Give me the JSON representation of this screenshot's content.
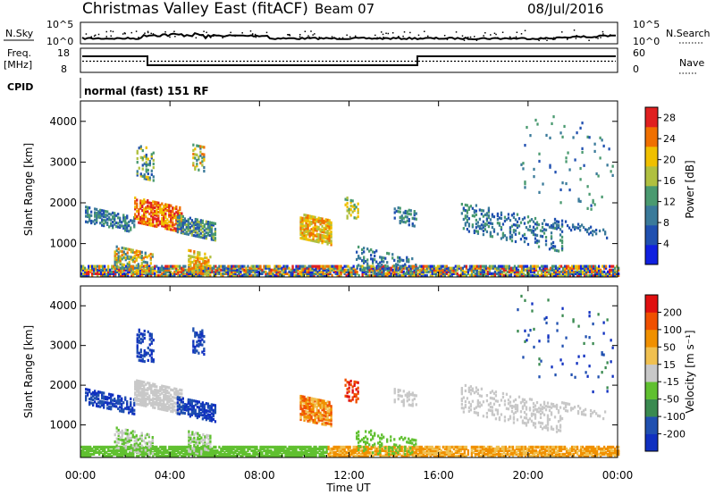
{
  "header": {
    "site": "Christmas Valley East (fitACF)",
    "beam": "Beam 07",
    "date": "08/Jul/2016"
  },
  "noise_panel": {
    "left_label": "N.Sky",
    "right_label": "N.Search",
    "left_ticks": [
      "10^5",
      "10^0"
    ],
    "right_ticks": [
      "10^5",
      "10^0"
    ]
  },
  "freq_panel": {
    "left_label_1": "Freq.",
    "left_label_2": "[MHz]",
    "right_label": "Nave",
    "left_ticks": [
      "18",
      "8"
    ],
    "right_ticks": [
      "60",
      "0"
    ]
  },
  "cpid": {
    "label": "CPID",
    "text": "normal (fast) 151 RF"
  },
  "x_axis": {
    "label": "Time UT",
    "ticks": [
      "00:00",
      "04:00",
      "08:00",
      "12:00",
      "16:00",
      "20:00",
      "00:00"
    ]
  },
  "colors": {
    "power": [
      "#1020e0",
      "#2050b0",
      "#3a7a9a",
      "#4a9a70",
      "#b0c040",
      "#f0c000",
      "#f07000",
      "#e02020"
    ],
    "velocity": [
      "#e01010",
      "#f05000",
      "#f09000",
      "#f0c050",
      "#c8c8c8",
      "#60c030",
      "#3a8a50",
      "#2050b0",
      "#1030c0"
    ],
    "ground": "#c0c0c0"
  },
  "chart_data": [
    {
      "type": "heatmap",
      "title": "",
      "xlabel": "Time UT",
      "ylabel": "Slant Range [km]",
      "xlim": [
        0,
        24
      ],
      "ylim": [
        180,
        4500
      ],
      "yticks": [
        "1000",
        "2000",
        "3000",
        "4000"
      ],
      "colorbar": {
        "label": "Power [dB]",
        "ticks": [
          "4",
          "8",
          "12",
          "16",
          "20",
          "24",
          "28"
        ],
        "range": [
          0,
          30
        ]
      }
    },
    {
      "type": "heatmap",
      "title": "",
      "xlabel": "Time UT",
      "ylabel": "Slant Range [km]",
      "xlim": [
        0,
        24
      ],
      "ylim": [
        180,
        4500
      ],
      "yticks": [
        "1000",
        "2000",
        "3000",
        "4000"
      ],
      "colorbar": {
        "label": "Velocity [m s⁻¹]",
        "ticks": [
          "200",
          "100",
          "50",
          "15",
          "-15",
          "-50",
          "-100",
          "-200"
        ]
      }
    }
  ]
}
